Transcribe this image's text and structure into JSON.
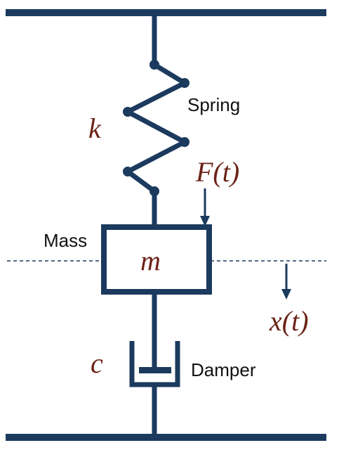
{
  "colors": {
    "structure": "#1b3a5e",
    "math": "#6b2217",
    "text": "#111111"
  },
  "labels": {
    "spring": "Spring",
    "mass": "Mass",
    "damper": "Damper"
  },
  "symbols": {
    "stiffness": "k",
    "mass": "m",
    "damping": "c",
    "force": "F(t)",
    "displacement": "x(t)"
  }
}
